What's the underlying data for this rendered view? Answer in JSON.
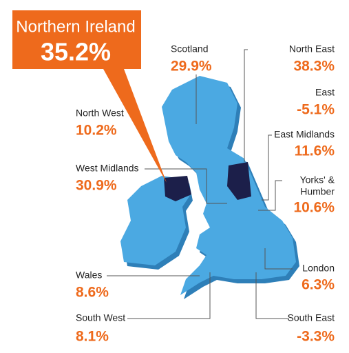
{
  "callout": {
    "name": "Northern Ireland",
    "value": "35.2%"
  },
  "left_regions": [
    {
      "name": "Scotland",
      "value": "29.9%"
    },
    {
      "name": "North West",
      "value": "10.2%"
    },
    {
      "name": "West Midlands",
      "value": "30.9%"
    },
    {
      "name": "Wales",
      "value": "8.6%"
    },
    {
      "name": "South West",
      "value": "8.1%"
    }
  ],
  "right_regions": [
    {
      "name": "North East",
      "value": "38.3%"
    },
    {
      "name": "East",
      "value": "-5.1%"
    },
    {
      "name": "East Midlands",
      "value": "11.6%"
    },
    {
      "name": [
        "Yorks' &",
        "Humber"
      ],
      "value": "10.6%"
    },
    {
      "name": "London",
      "value": "6.3%"
    },
    {
      "name": "South East",
      "value": "-3.3%"
    }
  ]
}
